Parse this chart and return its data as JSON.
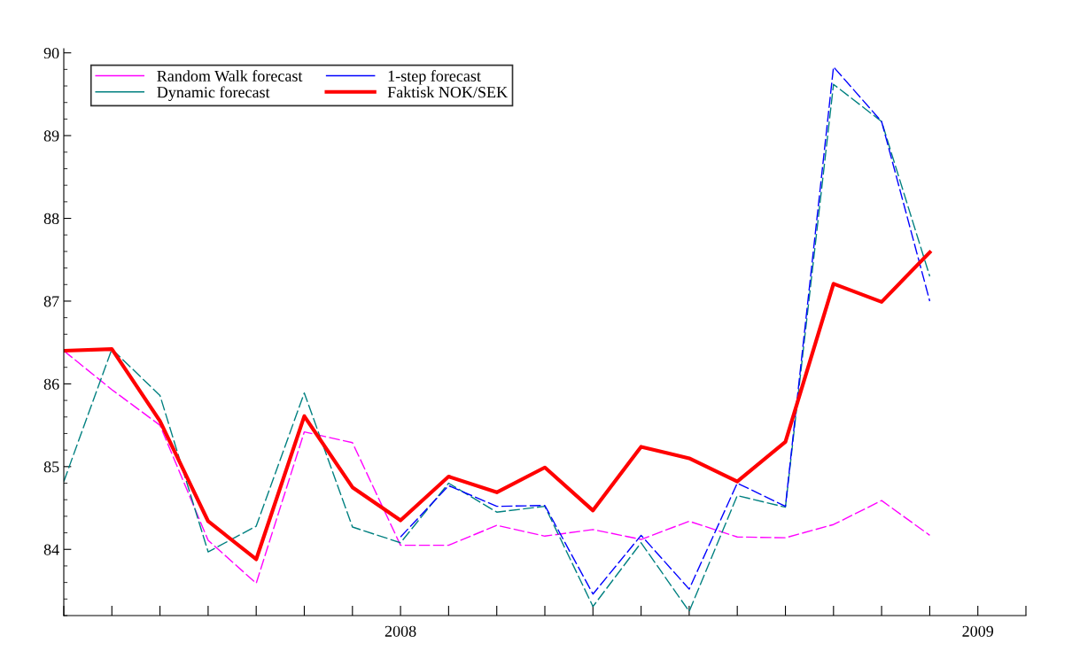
{
  "chart_data": {
    "type": "line",
    "x": [
      2007.4167,
      2007.5,
      2007.5833,
      2007.6667,
      2007.75,
      2007.8333,
      2007.9167,
      2008.0,
      2008.0833,
      2008.1667,
      2008.25,
      2008.3333,
      2008.4167,
      2008.5,
      2008.5833,
      2008.6667,
      2008.75,
      2008.8333,
      2008.9167
    ],
    "series": [
      {
        "name": "Random Walk forecast",
        "color": "#ff00ff",
        "line_style": "dashed",
        "values": [
          86.4,
          85.93,
          85.5,
          84.11,
          83.59,
          85.42,
          85.29,
          84.05,
          84.05,
          84.29,
          84.16,
          84.24,
          84.12,
          84.34,
          84.15,
          84.14,
          84.3,
          84.59,
          84.17
        ]
      },
      {
        "name": "Dynamic forecast",
        "color": "#008080",
        "line_style": "dashed",
        "values": [
          84.82,
          86.42,
          85.86,
          83.97,
          84.28,
          85.89,
          84.27,
          84.08,
          84.8,
          84.45,
          84.52,
          83.31,
          84.08,
          83.25,
          84.65,
          84.51,
          89.62,
          89.17,
          87.3
        ]
      },
      {
        "name": "1-step forecast",
        "color": "#0000ff",
        "line_style": "dashed",
        "values": [
          null,
          null,
          null,
          null,
          null,
          null,
          null,
          84.15,
          84.77,
          84.52,
          84.53,
          83.46,
          84.17,
          83.52,
          84.8,
          84.52,
          89.83,
          89.17,
          87.0
        ]
      },
      {
        "name": "Faktisk NOK/SEK",
        "color": "#ff0000",
        "line_style": "solid",
        "values": [
          86.4,
          86.42,
          85.55,
          84.34,
          83.88,
          85.61,
          84.75,
          84.35,
          84.88,
          84.69,
          84.99,
          84.47,
          85.24,
          85.1,
          84.82,
          85.3,
          87.21,
          86.99,
          87.59
        ]
      }
    ],
    "xlim": [
      2007.4167,
      2009.0833
    ],
    "xticks": [
      {
        "value": 2007.4167,
        "label": null
      },
      {
        "value": 2007.5,
        "label": null
      },
      {
        "value": 2007.5833,
        "label": null
      },
      {
        "value": 2007.6667,
        "label": null
      },
      {
        "value": 2007.75,
        "label": null
      },
      {
        "value": 2007.8333,
        "label": null
      },
      {
        "value": 2007.9167,
        "label": null
      },
      {
        "value": 2008,
        "label": "2008"
      },
      {
        "value": 2008.0833,
        "label": null
      },
      {
        "value": 2008.1667,
        "label": null
      },
      {
        "value": 2008.25,
        "label": null
      },
      {
        "value": 2008.3333,
        "label": null
      },
      {
        "value": 2008.4167,
        "label": null
      },
      {
        "value": 2008.5,
        "label": null
      },
      {
        "value": 2008.5833,
        "label": null
      },
      {
        "value": 2008.6667,
        "label": null
      },
      {
        "value": 2008.75,
        "label": null
      },
      {
        "value": 2008.8333,
        "label": null
      },
      {
        "value": 2008.9167,
        "label": null
      },
      {
        "value": 2009,
        "label": "2009"
      },
      {
        "value": 2009.0833,
        "label": null
      }
    ],
    "ylim": [
      83.2,
      90.05
    ],
    "yticks": [
      84,
      85,
      86,
      87,
      88,
      89,
      90
    ],
    "grid": false,
    "legend": "top left",
    "marker": "none"
  }
}
